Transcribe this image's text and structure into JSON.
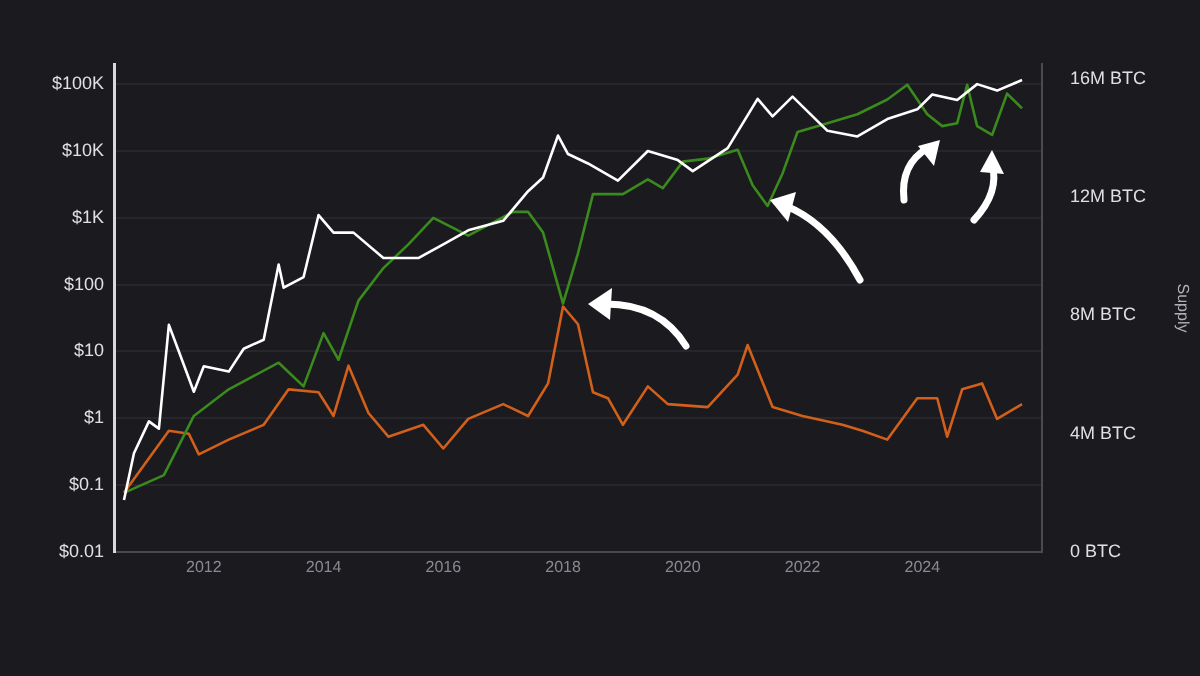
{
  "chart_data": {
    "type": "line",
    "y2label": "Supply",
    "xlim": [
      "2010-07",
      "2026-01"
    ],
    "xticks": [
      {
        "value": "2012",
        "label": "2012"
      },
      {
        "value": "2014",
        "label": "2014"
      },
      {
        "value": "2016",
        "label": "2016"
      },
      {
        "value": "2018",
        "label": "2018"
      },
      {
        "value": "2020",
        "label": "2020"
      },
      {
        "value": "2022",
        "label": "2022"
      },
      {
        "value": "2024",
        "label": "2024"
      }
    ],
    "log": "y",
    "ylim": [
      0.01,
      200000
    ],
    "yticks": [
      {
        "value": 0.01,
        "label": "$0.01"
      },
      {
        "value": 0.1,
        "label": "$0.1"
      },
      {
        "value": 1,
        "label": "$1"
      },
      {
        "value": 10,
        "label": "$10"
      },
      {
        "value": 100,
        "label": "$100"
      },
      {
        "value": 1000,
        "label": "$1K"
      },
      {
        "value": 10000,
        "label": "$10K"
      },
      {
        "value": 100000,
        "label": "$100K"
      }
    ],
    "y2lim": [
      0,
      16.5
    ],
    "y2ticks": [
      {
        "value": 0,
        "label": "0 BTC"
      },
      {
        "value": 4,
        "label": "4M BTC"
      },
      {
        "value": 8,
        "label": "8M BTC"
      },
      {
        "value": 12,
        "label": "12M BTC"
      },
      {
        "value": 16,
        "label": "16M BTC"
      }
    ],
    "grid": "y",
    "legend": false,
    "marker": "none",
    "line_style": "solid",
    "series": [
      {
        "color": "#ffffff",
        "x": [
          "2010-09",
          "2010-11",
          "2011-02",
          "2011-04",
          "2011-06",
          "2011-08",
          "2011-11",
          "2012-01",
          "2012-06",
          "2012-09",
          "2013-01",
          "2013-04",
          "2013-05",
          "2013-09",
          "2013-12",
          "2014-03",
          "2014-07",
          "2015-01",
          "2015-08",
          "2016-01",
          "2016-06",
          "2017-01",
          "2017-06",
          "2017-09",
          "2017-12",
          "2018-02",
          "2018-06",
          "2018-12",
          "2019-06",
          "2019-12",
          "2020-03",
          "2020-10",
          "2021-04",
          "2021-07",
          "2021-11",
          "2022-06",
          "2022-12",
          "2023-06",
          "2023-12",
          "2024-03",
          "2024-08",
          "2024-12",
          "2025-04",
          "2025-09"
        ],
        "values": [
          0.06,
          0.3,
          0.9,
          0.7,
          25,
          10,
          2.5,
          6,
          5,
          11,
          15,
          200,
          90,
          130,
          1100,
          600,
          600,
          250,
          250,
          400,
          650,
          900,
          2500,
          4000,
          17000,
          9000,
          6500,
          3600,
          10000,
          7300,
          5000,
          11000,
          60000,
          33000,
          65000,
          20000,
          16500,
          30000,
          42000,
          70000,
          58000,
          100000,
          80000,
          115000
        ]
      },
      {
        "color": "#3a8a1e",
        "axis": "y2",
        "x": [
          "2010-09",
          "2011-05",
          "2011-11",
          "2012-06",
          "2013-04",
          "2013-09",
          "2014-01",
          "2014-04",
          "2014-08",
          "2015-01",
          "2015-06",
          "2015-11",
          "2016-06",
          "2017-03",
          "2017-06",
          "2017-09",
          "2018-01",
          "2018-04",
          "2018-07",
          "2018-10",
          "2019-01",
          "2019-06",
          "2019-09",
          "2020-01",
          "2020-06",
          "2020-12",
          "2021-03",
          "2021-06",
          "2021-09",
          "2021-12",
          "2022-06",
          "2022-12",
          "2023-06",
          "2023-10",
          "2024-02",
          "2024-05",
          "2024-08",
          "2024-10",
          "2024-12",
          "2025-03",
          "2025-06",
          "2025-09"
        ],
        "values": [
          2.0,
          2.6,
          4.6,
          5.5,
          6.4,
          5.6,
          7.4,
          6.5,
          8.5,
          9.6,
          10.4,
          11.3,
          10.7,
          11.5,
          11.5,
          10.8,
          8.4,
          10.1,
          12.1,
          12.1,
          12.1,
          12.6,
          12.3,
          13.2,
          13.3,
          13.6,
          12.4,
          11.7,
          12.8,
          14.2,
          14.5,
          14.8,
          15.3,
          15.8,
          14.8,
          14.4,
          14.5,
          15.8,
          14.4,
          14.1,
          15.5,
          15.0
        ]
      },
      {
        "color": "#d2601a",
        "axis": "y2",
        "x": [
          "2010-09",
          "2011-06",
          "2011-10",
          "2011-12",
          "2012-06",
          "2013-01",
          "2013-06",
          "2013-12",
          "2014-03",
          "2014-06",
          "2014-10",
          "2015-02",
          "2015-09",
          "2016-01",
          "2016-06",
          "2017-01",
          "2017-06",
          "2017-10",
          "2018-01",
          "2018-04",
          "2018-07",
          "2018-10",
          "2019-01",
          "2019-06",
          "2019-10",
          "2020-06",
          "2020-12",
          "2021-02",
          "2021-07",
          "2022-01",
          "2022-09",
          "2023-01",
          "2023-06",
          "2023-12",
          "2024-04",
          "2024-06",
          "2024-09",
          "2025-01",
          "2025-04",
          "2025-09"
        ],
        "values": [
          2.0,
          4.1,
          4.0,
          3.3,
          3.8,
          4.3,
          5.5,
          5.4,
          4.6,
          6.3,
          4.7,
          3.9,
          4.3,
          3.5,
          4.5,
          5.0,
          4.6,
          5.7,
          8.3,
          7.7,
          5.4,
          5.2,
          4.3,
          5.6,
          5.0,
          4.9,
          6.0,
          7.0,
          4.9,
          4.6,
          4.3,
          4.1,
          3.8,
          5.2,
          5.2,
          3.9,
          5.5,
          5.7,
          4.5,
          5.0
        ]
      }
    ]
  }
}
